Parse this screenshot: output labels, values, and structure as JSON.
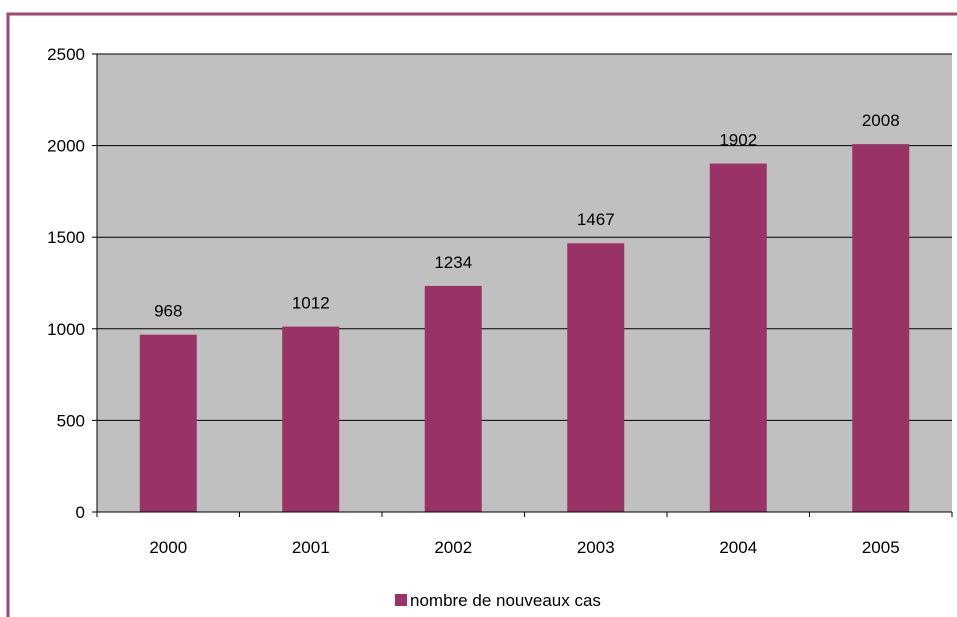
{
  "colors": {
    "bar": "#993366",
    "plot_background": "#c0c0c0",
    "frame": "#a0466f",
    "gridline": "#000000"
  },
  "chart_data": {
    "type": "bar",
    "categories": [
      "2000",
      "2001",
      "2002",
      "2003",
      "2004",
      "2005"
    ],
    "series": [
      {
        "name": "nombre de nouveaux cas",
        "values": [
          968,
          1012,
          1234,
          1467,
          1902,
          2008
        ]
      }
    ],
    "data_labels": [
      "968",
      "1012",
      "1234",
      "1467",
      "1902",
      "2008"
    ],
    "title": "",
    "xlabel": "",
    "ylabel": "",
    "ylim": [
      0,
      2500
    ],
    "yticks": [
      0,
      500,
      1000,
      1500,
      2000,
      2500
    ],
    "ytick_labels": [
      "0",
      "500",
      "1000",
      "1500",
      "2000",
      "2500"
    ],
    "grid": true,
    "legend_position": "bottom"
  }
}
